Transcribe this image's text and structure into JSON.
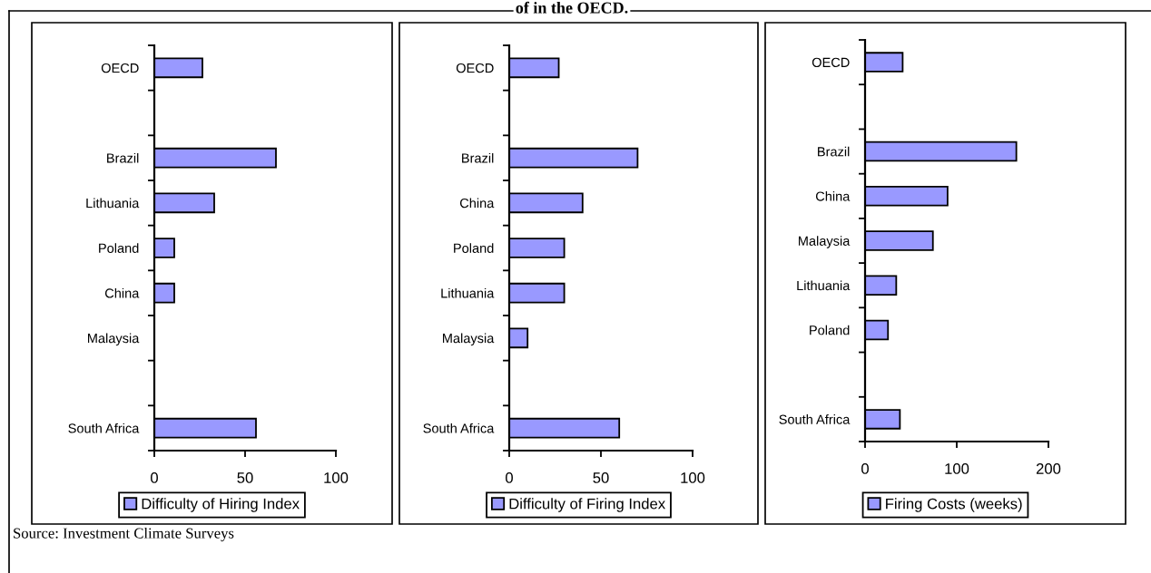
{
  "chart_data": [
    {
      "type": "bar",
      "orientation": "horizontal",
      "categories": [
        "OECD",
        null,
        "Brazil",
        "Lithuania",
        "Poland",
        "China",
        "Malaysia",
        null,
        "South Africa"
      ],
      "series": [
        {
          "name": "Difficulty of Hiring Index",
          "color": "#9999ff",
          "values": [
            26.5,
            null,
            67,
            33,
            11,
            11,
            null,
            null,
            56
          ]
        }
      ],
      "xlim": [
        0,
        100
      ],
      "xticks": [
        0,
        50,
        100
      ],
      "legend": "bottom",
      "grid": false,
      "annotations": [
        "Source: Investment Climate Surveys"
      ]
    },
    {
      "type": "bar",
      "orientation": "horizontal",
      "title": "of in the OECD.",
      "categories": [
        "OECD",
        null,
        "Brazil",
        "China",
        "Poland",
        "Lithuania",
        "Malaysia",
        null,
        "South Africa"
      ],
      "series": [
        {
          "name": "Difficulty of Firing Index",
          "color": "#9999ff",
          "values": [
            27,
            null,
            70,
            40,
            30,
            30,
            10,
            null,
            60
          ]
        }
      ],
      "xlim": [
        0,
        100
      ],
      "xticks": [
        0,
        50,
        100
      ],
      "legend": "bottom",
      "grid": false
    },
    {
      "type": "bar",
      "orientation": "horizontal",
      "categories": [
        "OECD",
        null,
        "Brazil",
        "China",
        "Malaysia",
        "Lithuania",
        "Poland",
        null,
        "South Africa"
      ],
      "series": [
        {
          "name": "Firing Costs (weeks)",
          "color": "#9999ff",
          "values": [
            41,
            null,
            165,
            90,
            74,
            34,
            25,
            null,
            38
          ]
        }
      ],
      "xlim": [
        0,
        200
      ],
      "xticks": [
        0,
        100,
        200
      ],
      "legend": "bottom",
      "grid": false
    }
  ]
}
